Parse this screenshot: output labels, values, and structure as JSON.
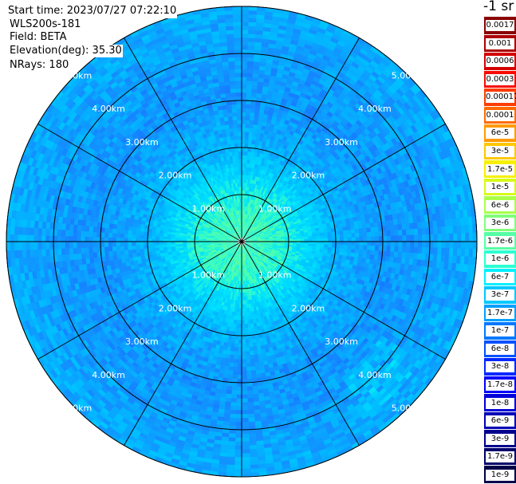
{
  "header": {
    "start_time": "Start time: 2023/07/27 07:22:10",
    "instrument": "WLS200s-181",
    "field": "Field: BETA",
    "elevation": "Elevation(deg): 35.30",
    "nrays": "NRays: 180"
  },
  "colorbar": {
    "unit": "-1 sr",
    "segments": [
      {
        "label": "0.0017",
        "color": "#8a0000"
      },
      {
        "label": "0.001",
        "color": "#ad0000"
      },
      {
        "label": "0.0006",
        "color": "#d40000"
      },
      {
        "label": "0.0003",
        "color": "#f80a00"
      },
      {
        "label": "0.00017",
        "color": "#ff3c00"
      },
      {
        "label": "0.0001",
        "color": "#ff6a00"
      },
      {
        "label": "6e-5",
        "color": "#ff9a00"
      },
      {
        "label": "3e-5",
        "color": "#ffc800"
      },
      {
        "label": "1.7e-5",
        "color": "#f8f000"
      },
      {
        "label": "1e-5",
        "color": "#d8fa18"
      },
      {
        "label": "6e-6",
        "color": "#aaff4a"
      },
      {
        "label": "3e-6",
        "color": "#80ff78"
      },
      {
        "label": "1.7e-6",
        "color": "#56ffa4"
      },
      {
        "label": "1e-6",
        "color": "#2cffd0"
      },
      {
        "label": "6e-7",
        "color": "#00f0ff"
      },
      {
        "label": "3e-7",
        "color": "#00c8ff"
      },
      {
        "label": "1.7e-7",
        "color": "#00a0ff"
      },
      {
        "label": "1e-7",
        "color": "#0078ff"
      },
      {
        "label": "6e-8",
        "color": "#0050ff"
      },
      {
        "label": "3e-8",
        "color": "#0028ff"
      },
      {
        "label": "1.7e-8",
        "color": "#0000fa"
      },
      {
        "label": "1e-8",
        "color": "#0000d8"
      },
      {
        "label": "6e-9",
        "color": "#0000b4"
      },
      {
        "label": "3e-9",
        "color": "#00008e"
      },
      {
        "label": "1.7e-9",
        "color": "#00006a"
      },
      {
        "label": "1e-9",
        "color": "#000048"
      }
    ]
  },
  "chart_data": {
    "type": "heatmap",
    "projection": "polar-ppi",
    "field": "BETA",
    "elevation_deg": 35.3,
    "n_rays": 180,
    "range_rings_km": [
      1,
      2,
      3,
      4,
      5
    ],
    "range_ring_labels": [
      "1.00km",
      "2.00km",
      "3.00km",
      "4.00km",
      "5.00km"
    ],
    "max_range_km": 5.0,
    "radial_spokes_every_deg": 30,
    "value_profile_by_range_km": [
      {
        "range_km": 0.5,
        "beta_sr-1": 8e-07
      },
      {
        "range_km": 1.0,
        "beta_sr-1": 5e-07
      },
      {
        "range_km": 1.5,
        "beta_sr-1": 2e-07
      },
      {
        "range_km": 2.0,
        "beta_sr-1": 8e-08
      },
      {
        "range_km": 3.0,
        "beta_sr-1": 4e-08
      },
      {
        "range_km": 4.0,
        "beta_sr-1": 5e-08
      },
      {
        "range_km": 5.0,
        "beta_sr-1": 7e-08
      }
    ],
    "grid": true,
    "legend": "right"
  }
}
